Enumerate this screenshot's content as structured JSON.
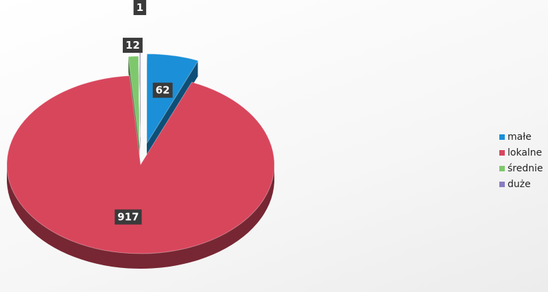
{
  "chart_data": {
    "type": "pie",
    "categories": [
      "małe",
      "lokalne",
      "średnie",
      "duże"
    ],
    "values": [
      62,
      917,
      12,
      1
    ],
    "colors": [
      "#1b8fd8",
      "#d8465c",
      "#7ec86c",
      "#8a7cc0"
    ],
    "legend": "right"
  }
}
